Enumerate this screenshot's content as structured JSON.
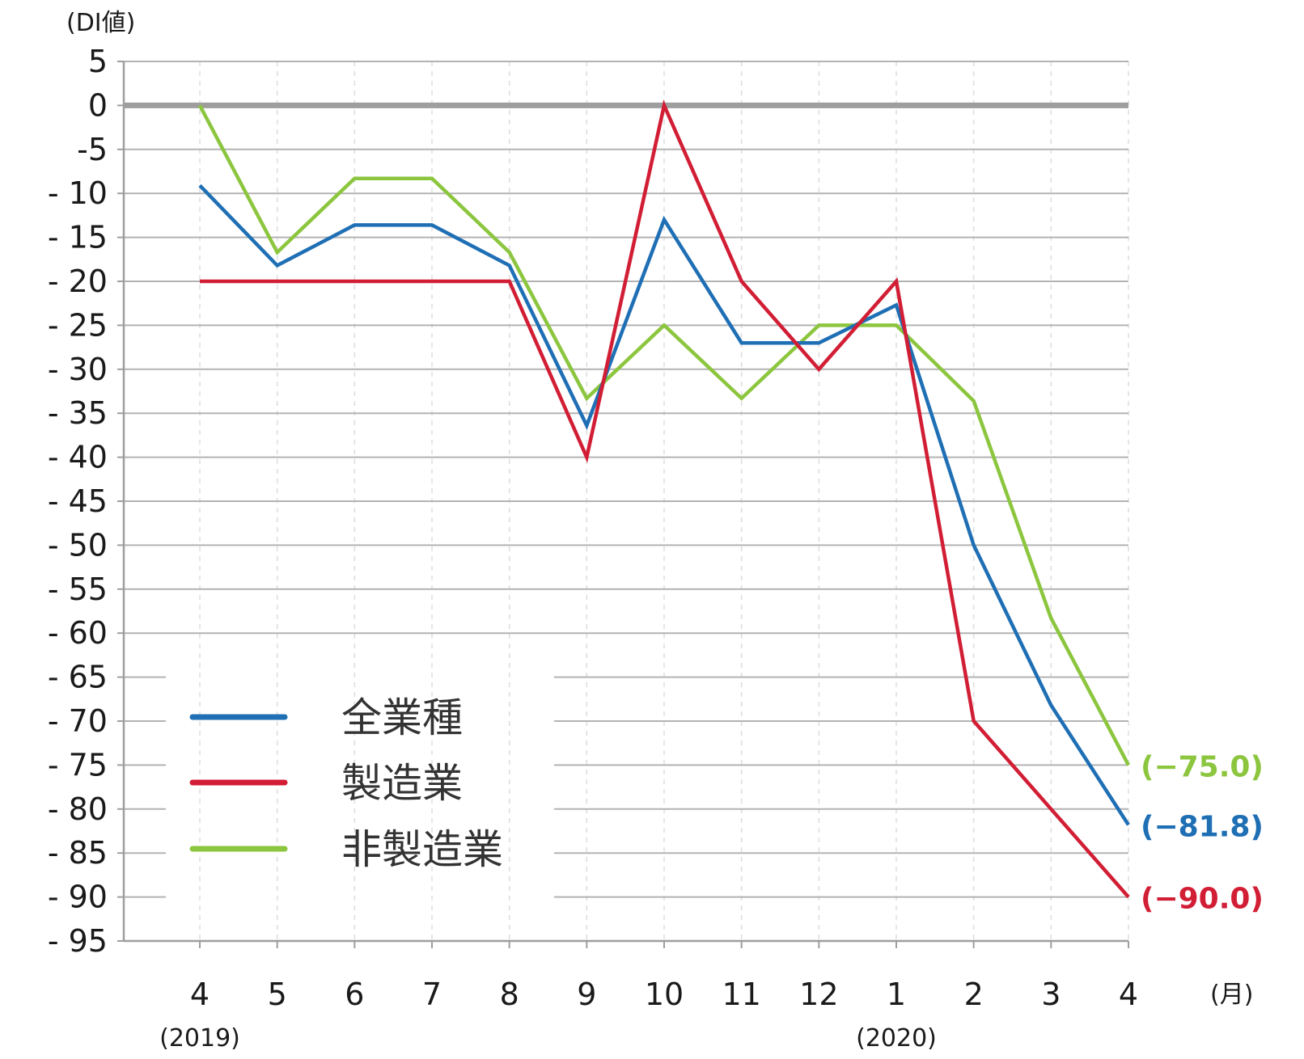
{
  "chart_data": {
    "type": "line",
    "ylabel": "(DI値)",
    "xlabel": "(月)",
    "categories": [
      "4",
      "5",
      "6",
      "7",
      "8",
      "9",
      "10",
      "11",
      "12",
      "1",
      "2",
      "3",
      "4"
    ],
    "year_labels": [
      {
        "category_index": 0,
        "text": "(2019)"
      },
      {
        "category_index": 9,
        "text": "(2020)"
      }
    ],
    "ylim": [
      -95,
      5
    ],
    "yticks": [
      5,
      0,
      -5,
      -10,
      -15,
      -20,
      -25,
      -30,
      -35,
      -40,
      -45,
      -50,
      -55,
      -60,
      -65,
      -70,
      -75,
      -80,
      -85,
      -90,
      -95
    ],
    "ytick_labels": [
      "5",
      "0",
      "-5",
      "- 10",
      "- 15",
      "- 20",
      "- 25",
      "- 30",
      "- 35",
      "- 40",
      "- 45",
      "- 50",
      "- 55",
      "- 60",
      "- 65",
      "- 70",
      "- 75",
      "- 80",
      "- 85",
      "- 90",
      "- 95"
    ],
    "grid": true,
    "zero_line": true,
    "legend_position": "bottom-left",
    "series": [
      {
        "name": "全業種",
        "color": "#1f6fb5",
        "values": [
          -9.1,
          -18.2,
          -13.6,
          -13.6,
          -18.2,
          -36.4,
          -13.0,
          -27.0,
          -27.0,
          -22.7,
          -50.0,
          -68.2,
          -81.8
        ],
        "end_label": "(−81.8)"
      },
      {
        "name": "製造業",
        "color": "#d21e35",
        "values": [
          -20,
          -20,
          -20,
          -20,
          -20,
          -40,
          0,
          -20,
          -30,
          -20,
          -70,
          -80,
          -90
        ],
        "end_label": "(−90.0)"
      },
      {
        "name": "非製造業",
        "color": "#8cc63f",
        "values": [
          0,
          -16.7,
          -8.3,
          -8.3,
          -16.7,
          -33.3,
          -25.0,
          -33.3,
          -25.0,
          -25.0,
          -33.6,
          -58.3,
          -75.0
        ],
        "end_label": "(−75.0)"
      }
    ]
  }
}
